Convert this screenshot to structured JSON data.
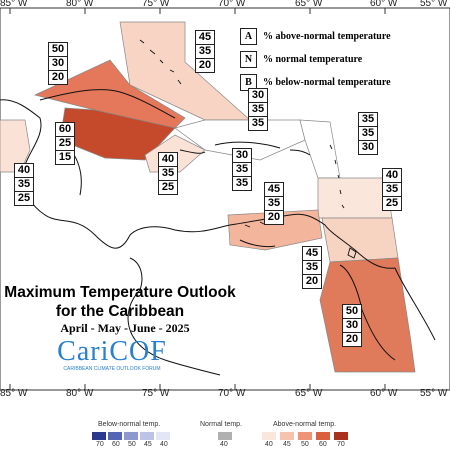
{
  "title_line1": "Maximum Temperature Outlook",
  "title_line2": "for the Caribbean",
  "period": "April - May - June - 2025",
  "logo": {
    "name": "CariCOF",
    "subtitle": "CARIBBEAN CLIMATE OUTLOOK FORUM"
  },
  "legend_keys": [
    {
      "key": "A",
      "text": "% above-normal temperature"
    },
    {
      "key": "N",
      "text": "% normal temperature"
    },
    {
      "key": "B",
      "text": "% below-normal temperature"
    }
  ],
  "longitude_labels": [
    "85° W",
    "80° W",
    "75° W",
    "70° W",
    "65° W",
    "60° W",
    "55° W"
  ],
  "zones": [
    {
      "id": "cuba",
      "values": [
        "50",
        "30",
        "20"
      ]
    },
    {
      "id": "bahamas",
      "values": [
        "45",
        "35",
        "20"
      ]
    },
    {
      "id": "cayman",
      "values": [
        "60",
        "25",
        "15"
      ]
    },
    {
      "id": "belize",
      "values": [
        "40",
        "35",
        "25"
      ]
    },
    {
      "id": "jamaica",
      "values": [
        "40",
        "35",
        "25"
      ]
    },
    {
      "id": "turks",
      "values": [
        "30",
        "35",
        "35"
      ]
    },
    {
      "id": "hispaniola",
      "values": [
        "30",
        "35",
        "35"
      ]
    },
    {
      "id": "leeward-north",
      "values": [
        "35",
        "35",
        "30"
      ]
    },
    {
      "id": "windward",
      "values": [
        "40",
        "35",
        "25"
      ]
    },
    {
      "id": "abc",
      "values": [
        "45",
        "35",
        "20"
      ]
    },
    {
      "id": "trinidad",
      "values": [
        "45",
        "35",
        "20"
      ]
    },
    {
      "id": "guianas",
      "values": [
        "50",
        "30",
        "20"
      ]
    }
  ],
  "scale": {
    "below_caption": "Below-normal temp.",
    "normal_caption": "Normal temp.",
    "above_caption": "Above-normal temp.",
    "below_values": [
      "70",
      "60",
      "50",
      "45",
      "40"
    ],
    "normal_values": [
      "40"
    ],
    "above_values": [
      "40",
      "45",
      "50",
      "60",
      "70"
    ],
    "below_colors": [
      "#2b3a8f",
      "#5565b5",
      "#8e98d0",
      "#bcc3e6",
      "#e3e6f5"
    ],
    "normal_color": "#b0b0b0",
    "above_colors": [
      "#fbe6dc",
      "#f6c4ad",
      "#ee9477",
      "#d9603f",
      "#a8321c"
    ]
  }
}
